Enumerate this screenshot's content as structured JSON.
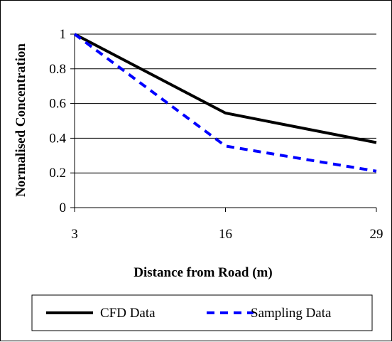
{
  "chart_data": {
    "type": "line",
    "x": [
      3,
      16,
      29
    ],
    "xticks": [
      "3",
      "16",
      "29"
    ],
    "yticks": [
      "0",
      "0.2",
      "0.4",
      "0.6",
      "0.8",
      "1"
    ],
    "ylim": [
      0,
      1
    ],
    "xlabel": "Distance from Road (m)",
    "ylabel": "Normalised Concentration",
    "grid": true,
    "legend_position": "bottom",
    "series": [
      {
        "name": "CFD Data",
        "values": [
          1.0,
          0.545,
          0.375
        ],
        "color": "#000000",
        "style": "solid"
      },
      {
        "name": "Sampling Data",
        "values": [
          1.0,
          0.355,
          0.21
        ],
        "color": "#0000ff",
        "style": "dashed"
      }
    ]
  }
}
